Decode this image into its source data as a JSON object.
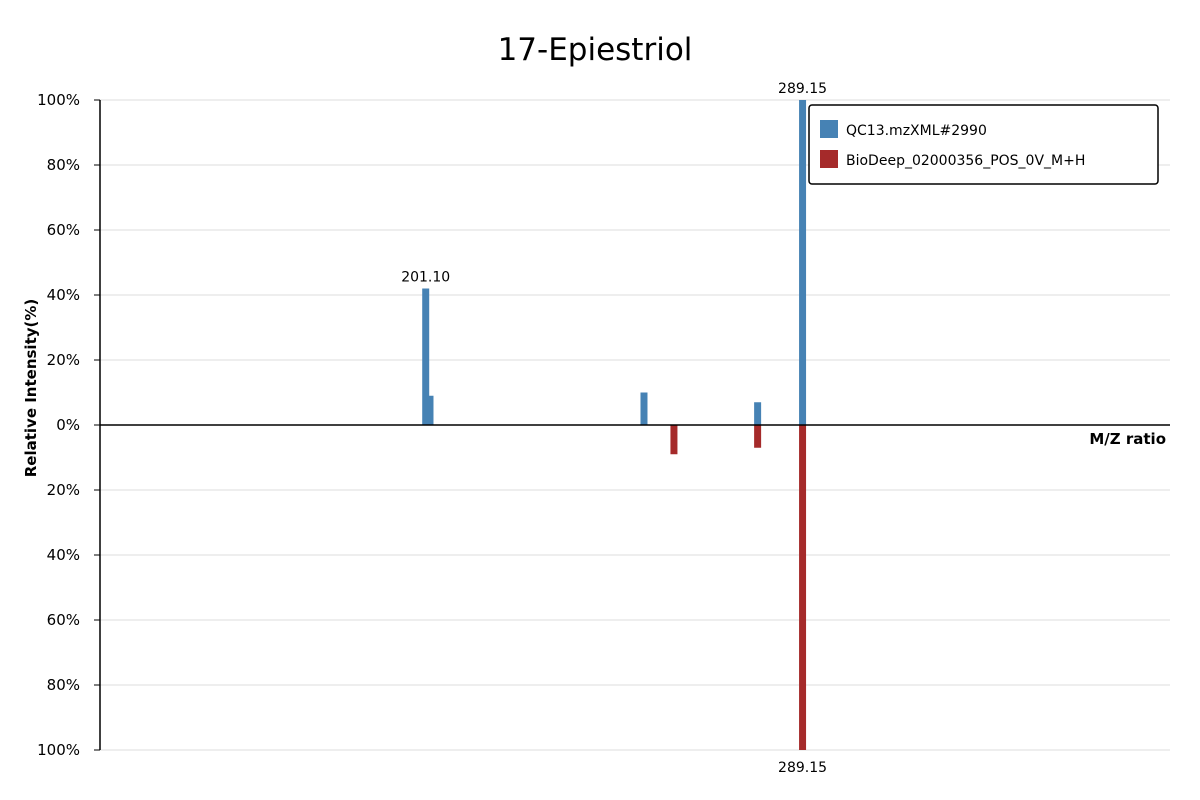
{
  "chart_data": {
    "type": "bar",
    "title": "17-Epiestriol",
    "xlabel": "M/Z ratio",
    "ylabel": "Relative Intensity(%)",
    "y_ticks_top": [
      "100%",
      "80%",
      "60%",
      "40%",
      "20%",
      "0%"
    ],
    "y_ticks_bottom": [
      "20%",
      "40%",
      "60%",
      "80%",
      "100%"
    ],
    "ylim": [
      -100,
      100
    ],
    "xlim": [
      125,
      375
    ],
    "grid": true,
    "legend_position": "top-right",
    "series": [
      {
        "name": "QC13.mzXML#2990",
        "color": "#4682b4",
        "direction": "up",
        "points": [
          {
            "mz": 201.1,
            "intensity": 42,
            "label": "201.10"
          },
          {
            "mz": 202.1,
            "intensity": 9,
            "label": ""
          },
          {
            "mz": 252.1,
            "intensity": 10,
            "label": ""
          },
          {
            "mz": 278.65,
            "intensity": 7,
            "label": ""
          },
          {
            "mz": 289.15,
            "intensity": 100,
            "label": "289.15"
          }
        ]
      },
      {
        "name": "BioDeep_02000356_POS_0V_M+H",
        "color": "#a52a2a",
        "direction": "down",
        "points": [
          {
            "mz": 259.1,
            "intensity": 9,
            "label": ""
          },
          {
            "mz": 278.65,
            "intensity": 7,
            "label": ""
          },
          {
            "mz": 289.15,
            "intensity": 100,
            "label": "289.15"
          }
        ]
      }
    ]
  }
}
